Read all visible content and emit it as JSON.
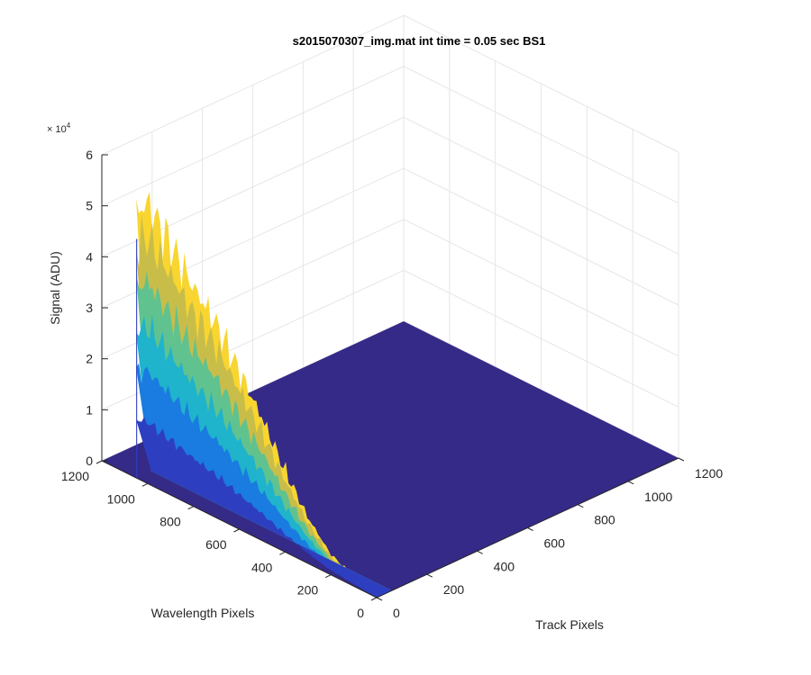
{
  "chart_data": {
    "type": "surface",
    "title": "s2015070307_img.mat int time = 0.05 sec   BS1",
    "xlabel": "Track Pixels",
    "ylabel": "Wavelength Pixels",
    "zlabel": "Signal (ADU)",
    "z_exponent_label": "× 10",
    "z_exponent_power": "4",
    "xlim": [
      0,
      1200
    ],
    "ylim": [
      0,
      1200
    ],
    "zlim": [
      0,
      60000
    ],
    "x_ticks": [
      0,
      200,
      400,
      600,
      800,
      1000,
      1200
    ],
    "y_ticks": [
      0,
      200,
      400,
      600,
      800,
      1000,
      1200
    ],
    "z_ticks": [
      0,
      1,
      2,
      3,
      4,
      5,
      6
    ],
    "x_tick_labels": [
      "0",
      "200",
      "400",
      "600",
      "800",
      "1000",
      "1200"
    ],
    "y_tick_labels": [
      "0",
      "200",
      "400",
      "600",
      "800",
      "1000",
      "1200"
    ],
    "z_tick_labels": [
      "0",
      "1",
      "2",
      "3",
      "4",
      "5",
      "6"
    ],
    "grid": true,
    "colormap": "parula",
    "colors": {
      "floor": "#352a87",
      "low": "#2d3fc0",
      "mid_low": "#1a7be0",
      "mid": "#1fb3cc",
      "mid_high": "#60c28f",
      "high": "#c9bd4a",
      "peak": "#f9d530",
      "grid": "#e6e6e6",
      "axis": "#262626"
    },
    "series": [
      {
        "profile_along_wavelength": [
          {
            "wavelength": 0,
            "signal": 0
          },
          {
            "wavelength": 200,
            "signal": 4000
          },
          {
            "wavelength": 300,
            "signal": 9000
          },
          {
            "wavelength": 400,
            "signal": 16000
          },
          {
            "wavelength": 500,
            "signal": 24000
          },
          {
            "wavelength": 600,
            "signal": 31000
          },
          {
            "wavelength": 700,
            "signal": 38000
          },
          {
            "wavelength": 800,
            "signal": 43000
          },
          {
            "wavelength": 900,
            "signal": 49000
          },
          {
            "wavelength": 1000,
            "signal": 55000
          },
          {
            "wavelength": 1050,
            "signal": 52000
          }
        ],
        "track_extent": [
          0,
          60
        ]
      }
    ]
  }
}
